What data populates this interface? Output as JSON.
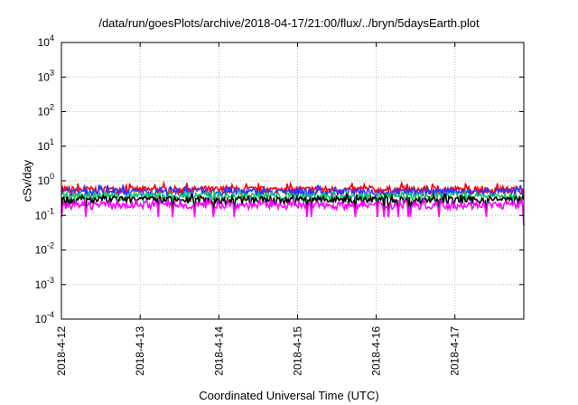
{
  "chart_data": {
    "type": "line",
    "title": "/data/run/goesPlots/archive/2018-04-17/21:00/flux/../bryn/5daysEarth.plot",
    "xlabel": "Coordinated Universal Time (UTC)",
    "ylabel": "cSv/day",
    "yscale": "log",
    "ylim": [
      0.0001,
      10000
    ],
    "yticks": [
      {
        "base": "10",
        "exp": "-4"
      },
      {
        "base": "10",
        "exp": "-3"
      },
      {
        "base": "10",
        "exp": "-2"
      },
      {
        "base": "10",
        "exp": "-1"
      },
      {
        "base": "10",
        "exp": "0"
      },
      {
        "base": "10",
        "exp": "1"
      },
      {
        "base": "10",
        "exp": "2"
      },
      {
        "base": "10",
        "exp": "3"
      },
      {
        "base": "10",
        "exp": "4"
      }
    ],
    "xlim": [
      "2018-04-12T00:00",
      "2018-04-17T21:00"
    ],
    "xtick_labels": [
      "2018-4-12",
      "2018-4-13",
      "2018-4-14",
      "2018-4-15",
      "2018-4-16",
      "2018-4-17"
    ],
    "grid": true,
    "series": [
      {
        "color": "#ff0000",
        "base": 0.55,
        "amp": 0.12
      },
      {
        "color": "#3333ff",
        "base": 0.48,
        "amp": 0.12
      },
      {
        "color": "#00cc66",
        "base": 0.36,
        "amp": 0.06
      },
      {
        "color": "#000000",
        "base": 0.28,
        "amp": 0.04
      },
      {
        "color": "#ff00ff",
        "base": 0.2,
        "amp": 0.04
      }
    ]
  }
}
